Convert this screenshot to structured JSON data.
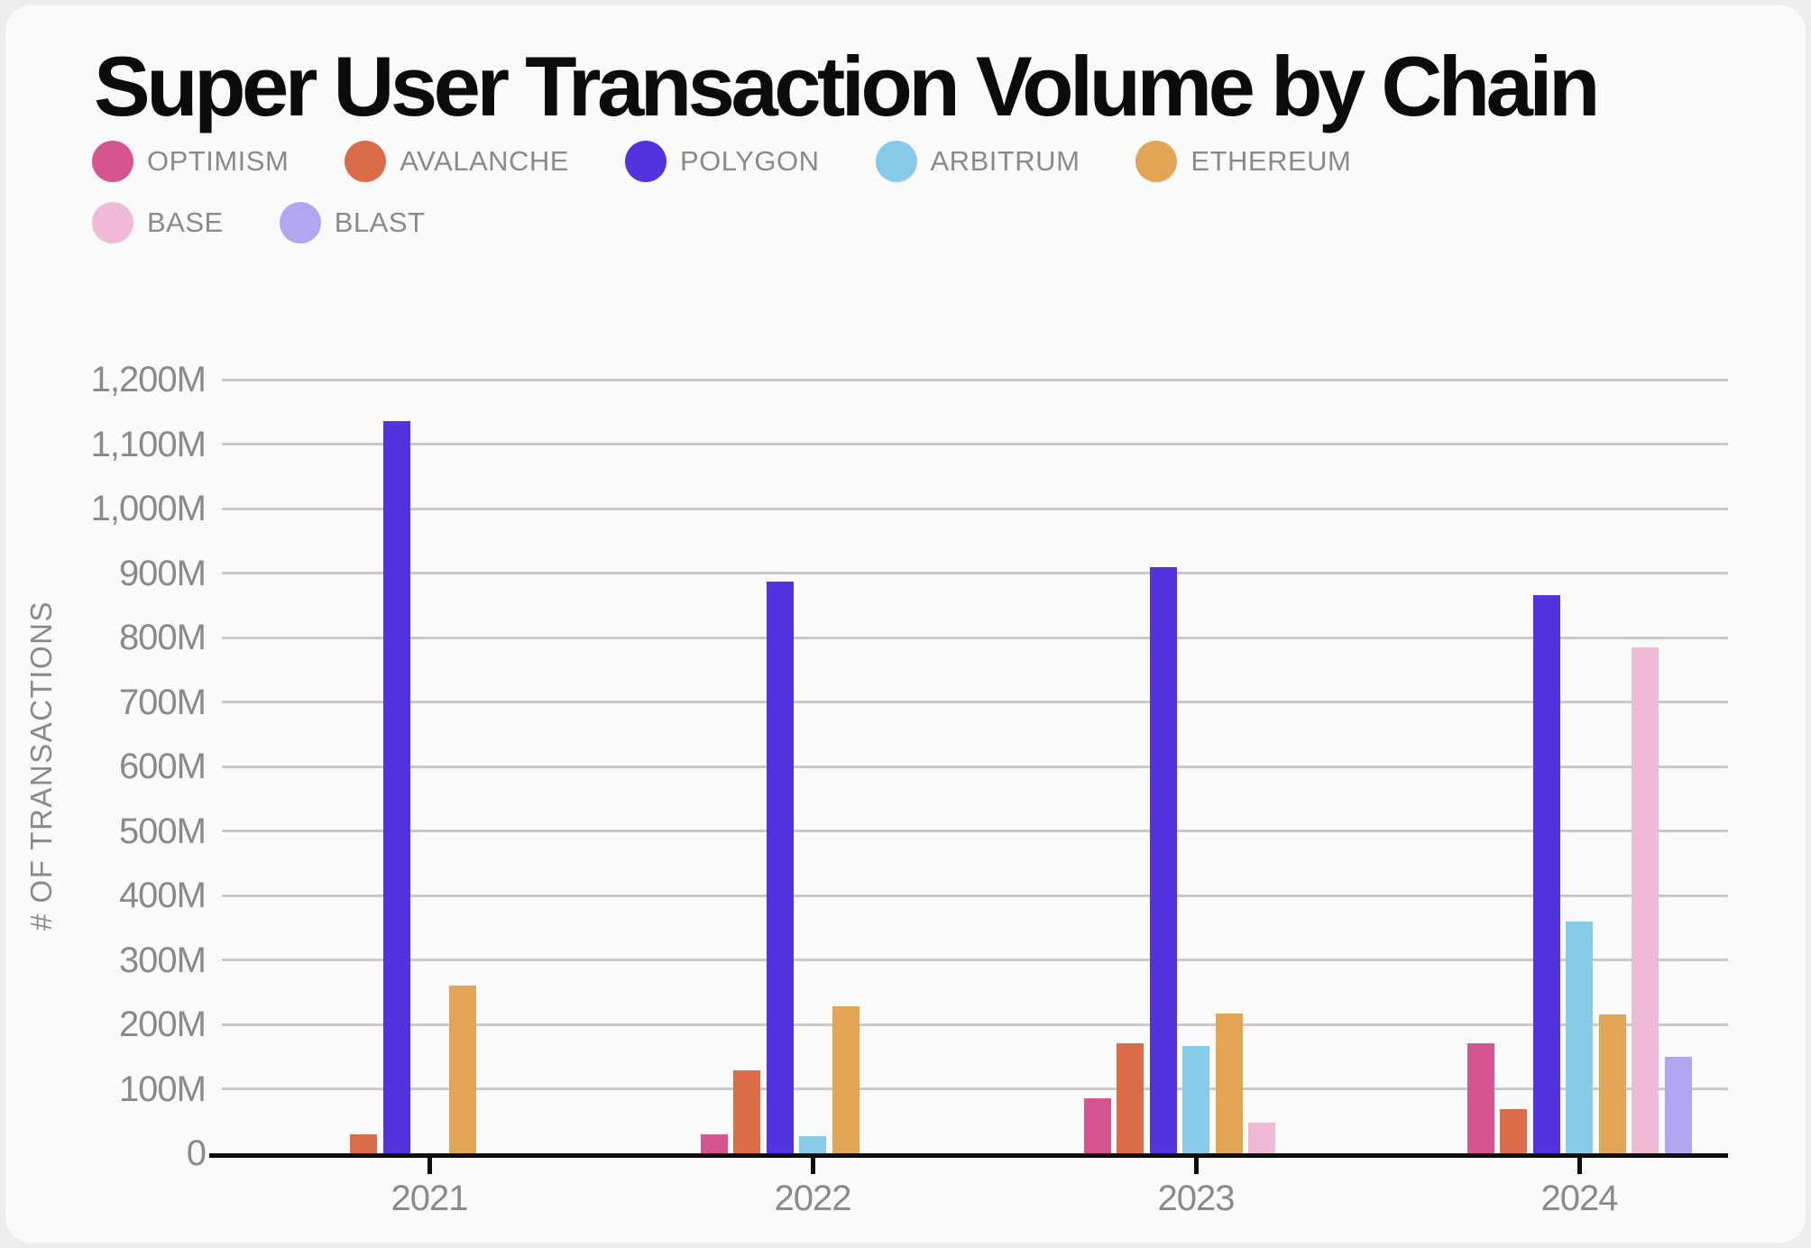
{
  "title": "Super User Transaction Volume by Chain",
  "colors": {
    "page_background": "#ededed",
    "card_background": "#fafafa",
    "grid": "#c9c9c9",
    "axis": "#0d0d0d",
    "muted_text": "#8a8a8a",
    "title_text": "#0b0b0b"
  },
  "chart_data": {
    "type": "bar",
    "title": "Super User Transaction Volume by Chain",
    "categories": [
      "2021",
      "2022",
      "2023",
      "2024"
    ],
    "series": [
      {
        "name": "OPTIMISM",
        "color": "#d45590",
        "values": [
          0,
          30,
          85,
          170
        ]
      },
      {
        "name": "AVALANCHE",
        "color": "#da6c4a",
        "values": [
          30,
          128,
          170,
          68
        ]
      },
      {
        "name": "POLYGON",
        "color": "#5233dd",
        "values": [
          1135,
          887,
          909,
          866
        ]
      },
      {
        "name": "ARBITRUM",
        "color": "#87cbe8",
        "values": [
          0,
          27,
          166,
          360
        ]
      },
      {
        "name": "ETHEREUM",
        "color": "#e2a455",
        "values": [
          260,
          228,
          217,
          216
        ]
      },
      {
        "name": "BASE",
        "color": "#f0b9d5",
        "values": [
          0,
          0,
          47,
          785
        ]
      },
      {
        "name": "BLAST",
        "color": "#b2a6f0",
        "values": [
          0,
          0,
          0,
          150
        ]
      }
    ],
    "xlabel": "",
    "ylabel": "# OF TRANSACTIONS",
    "ylim": [
      0,
      1200
    ],
    "ytick_step": 100,
    "ytick_labels": [
      "0",
      "100M",
      "200M",
      "300M",
      "400M",
      "500M",
      "600M",
      "700M",
      "800M",
      "900M",
      "1,000M",
      "1,100M",
      "1,200M"
    ],
    "grid": true,
    "legend_position": "top",
    "values_unit": "M"
  }
}
